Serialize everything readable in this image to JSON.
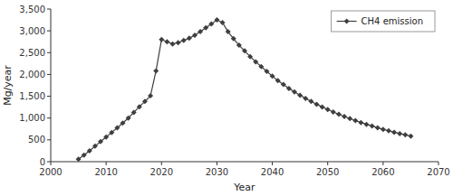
{
  "chart_data": {
    "type": "line",
    "xlabel": "Year",
    "ylabel": "Mg/year",
    "x": [
      2005,
      2006,
      2007,
      2008,
      2009,
      2010,
      2011,
      2012,
      2013,
      2014,
      2015,
      2016,
      2017,
      2018,
      2019,
      2020,
      2021,
      2022,
      2023,
      2024,
      2025,
      2026,
      2027,
      2028,
      2029,
      2030,
      2031,
      2032,
      2033,
      2034,
      2035,
      2036,
      2037,
      2038,
      2039,
      2040,
      2041,
      2042,
      2043,
      2044,
      2045,
      2046,
      2047,
      2048,
      2049,
      2050,
      2051,
      2052,
      2053,
      2054,
      2055,
      2056,
      2057,
      2058,
      2059,
      2060,
      2061,
      2062,
      2063,
      2064,
      2065
    ],
    "series": [
      {
        "name": "CH4 emission",
        "color": "#3f3f3f",
        "marker": "diamond",
        "values": [
          55,
          150,
          250,
          355,
          460,
          565,
          670,
          775,
          885,
          1000,
          1130,
          1260,
          1380,
          1510,
          2080,
          2800,
          2750,
          2700,
          2730,
          2780,
          2830,
          2900,
          2980,
          3070,
          3160,
          3250,
          3190,
          2980,
          2820,
          2670,
          2540,
          2410,
          2290,
          2180,
          2070,
          1960,
          1860,
          1770,
          1680,
          1600,
          1524,
          1452,
          1383,
          1317,
          1255,
          1196,
          1140,
          1087,
          1036,
          988,
          942,
          898,
          856,
          817,
          779,
          742,
          708,
          675,
          644,
          614,
          586
        ]
      }
    ],
    "xlim": [
      2000,
      2070
    ],
    "ylim": [
      0,
      3500
    ],
    "xticks": [
      2000,
      2010,
      2020,
      2030,
      2040,
      2050,
      2060,
      2070
    ],
    "yticks": [
      0,
      500,
      {
        "value": 1000,
        "label": "1,000"
      },
      {
        "value": 1500,
        "label": "1,500"
      },
      {
        "value": 2000,
        "label": "2,000"
      },
      {
        "value": 2500,
        "label": "2,500"
      },
      {
        "value": 3000,
        "label": "3,000"
      },
      {
        "value": 3500,
        "label": "3,500"
      }
    ],
    "legend": "upper right"
  }
}
